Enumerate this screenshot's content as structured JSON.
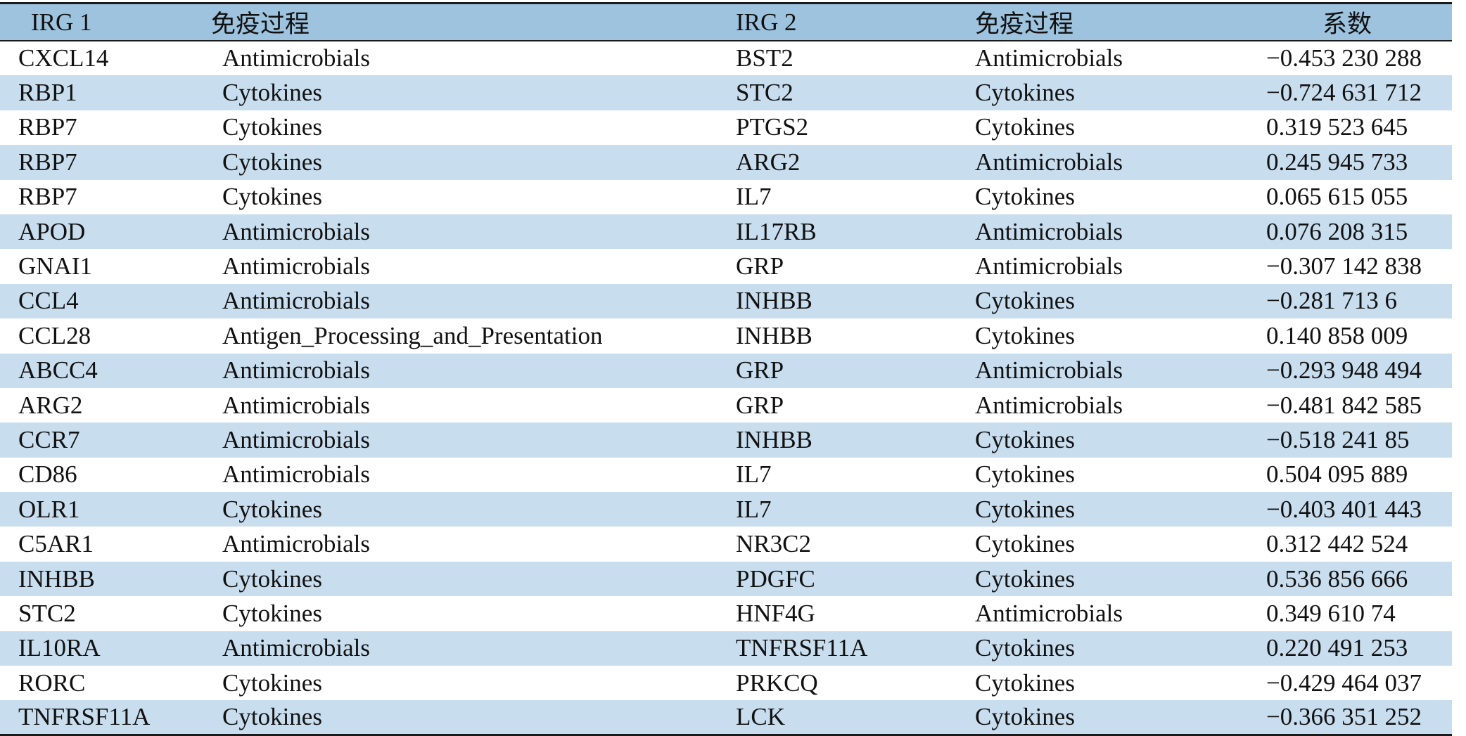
{
  "table": {
    "headers": [
      "IRG 1",
      "免疫过程",
      "IRG 2",
      "免疫过程",
      "系数"
    ],
    "rows": [
      [
        "CXCL14",
        "Antimicrobials",
        "BST2",
        "Antimicrobials",
        "−0.453 230 288"
      ],
      [
        "RBP1",
        "Cytokines",
        "STC2",
        "Cytokines",
        "−0.724 631 712"
      ],
      [
        "RBP7",
        "Cytokines",
        "PTGS2",
        "Cytokines",
        "0.319 523 645"
      ],
      [
        "RBP7",
        "Cytokines",
        "ARG2",
        "Antimicrobials",
        "0.245 945 733"
      ],
      [
        "RBP7",
        "Cytokines",
        "IL7",
        "Cytokines",
        "0.065 615 055"
      ],
      [
        "APOD",
        "Antimicrobials",
        "IL17RB",
        "Antimicrobials",
        "0.076 208 315"
      ],
      [
        "GNAI1",
        "Antimicrobials",
        "GRP",
        "Antimicrobials",
        "−0.307 142 838"
      ],
      [
        "CCL4",
        "Antimicrobials",
        "INHBB",
        "Cytokines",
        "−0.281 713 6"
      ],
      [
        "CCL28",
        "Antigen_Processing_and_Presentation",
        "INHBB",
        "Cytokines",
        "0.140 858 009"
      ],
      [
        "ABCC4",
        "Antimicrobials",
        "GRP",
        "Antimicrobials",
        "−0.293 948 494"
      ],
      [
        "ARG2",
        "Antimicrobials",
        "GRP",
        "Antimicrobials",
        "−0.481 842 585"
      ],
      [
        "CCR7",
        "Antimicrobials",
        "INHBB",
        "Cytokines",
        "−0.518 241 85"
      ],
      [
        "CD86",
        "Antimicrobials",
        "IL7",
        "Cytokines",
        "0.504 095 889"
      ],
      [
        "OLR1",
        "Cytokines",
        "IL7",
        "Cytokines",
        "−0.403 401 443"
      ],
      [
        "C5AR1",
        "Antimicrobials",
        "NR3C2",
        "Cytokines",
        "0.312 442 524"
      ],
      [
        "INHBB",
        "Cytokines",
        "PDGFC",
        "Cytokines",
        "0.536 856 666"
      ],
      [
        "STC2",
        "Cytokines",
        "HNF4G",
        "Antimicrobials",
        "0.349 610 74"
      ],
      [
        "IL10RA",
        "Antimicrobials",
        "TNFRSF11A",
        "Cytokines",
        "0.220 491 253"
      ],
      [
        "RORC",
        "Cytokines",
        "PRKCQ",
        "Cytokines",
        "−0.429 464 037"
      ],
      [
        "TNFRSF11A",
        "Cytokines",
        "LCK",
        "Cytokines",
        "−0.366 351 252"
      ]
    ]
  }
}
